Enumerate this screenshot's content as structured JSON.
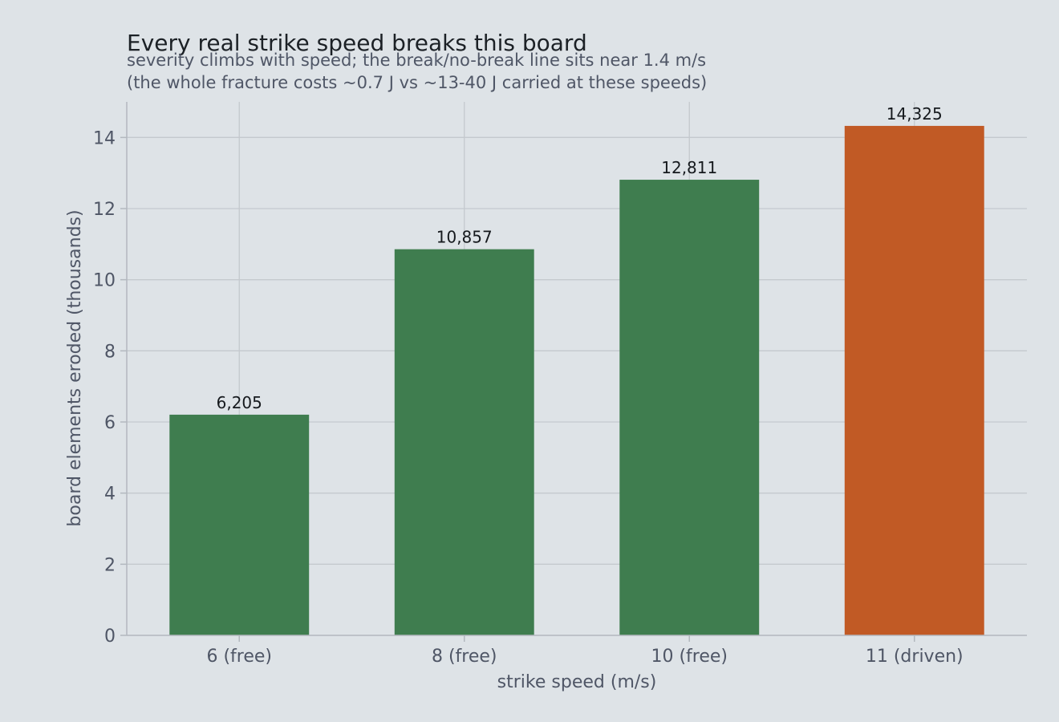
{
  "chart_data": {
    "type": "bar",
    "title": "Every real strike speed breaks this board",
    "subtitle_lines": [
      "severity climbs with speed; the break/no-break line sits near 1.4 m/s",
      "(the whole fracture costs ~0.7 J vs ~13-40 J carried at these speeds)"
    ],
    "xlabel": "strike speed (m/s)",
    "ylabel": "board elements eroded (thousands)",
    "categories": [
      "6 (free)",
      "8 (free)",
      "10 (free)",
      "11 (driven)"
    ],
    "values": [
      6.205,
      10.857,
      12.811,
      14.325
    ],
    "value_labels": [
      "6,205",
      "10,857",
      "12,811",
      "14,325"
    ],
    "bar_colors": [
      "#3f7d4f",
      "#3f7d4f",
      "#3f7d4f",
      "#c15a25"
    ],
    "ylim": [
      0,
      15
    ],
    "yticks": [
      0,
      2,
      4,
      6,
      8,
      10,
      12,
      14
    ],
    "grid": true,
    "legend": "none"
  }
}
